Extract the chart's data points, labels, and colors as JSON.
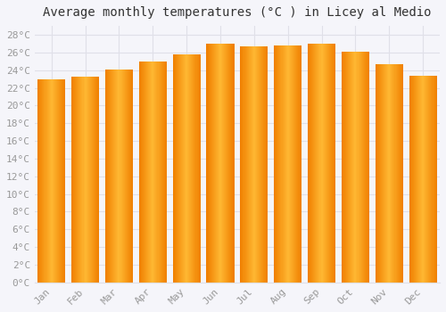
{
  "title": "Average monthly temperatures (°C ) in Licey al Medio",
  "months": [
    "Jan",
    "Feb",
    "Mar",
    "Apr",
    "May",
    "Jun",
    "Jul",
    "Aug",
    "Sep",
    "Oct",
    "Nov",
    "Dec"
  ],
  "values": [
    23.0,
    23.3,
    24.1,
    25.0,
    25.8,
    27.0,
    26.7,
    26.8,
    27.0,
    26.1,
    24.7,
    23.4
  ],
  "bar_color_light": "#FFB833",
  "bar_color_dark": "#F08000",
  "ylim": [
    0,
    29
  ],
  "yticks": [
    0,
    2,
    4,
    6,
    8,
    10,
    12,
    14,
    16,
    18,
    20,
    22,
    24,
    26,
    28
  ],
  "background_color": "#f5f5fa",
  "plot_bg_color": "#f5f5fa",
  "grid_color": "#e0e0e8",
  "title_fontsize": 10,
  "tick_fontsize": 8,
  "title_color": "#333333",
  "tick_color": "#999999"
}
